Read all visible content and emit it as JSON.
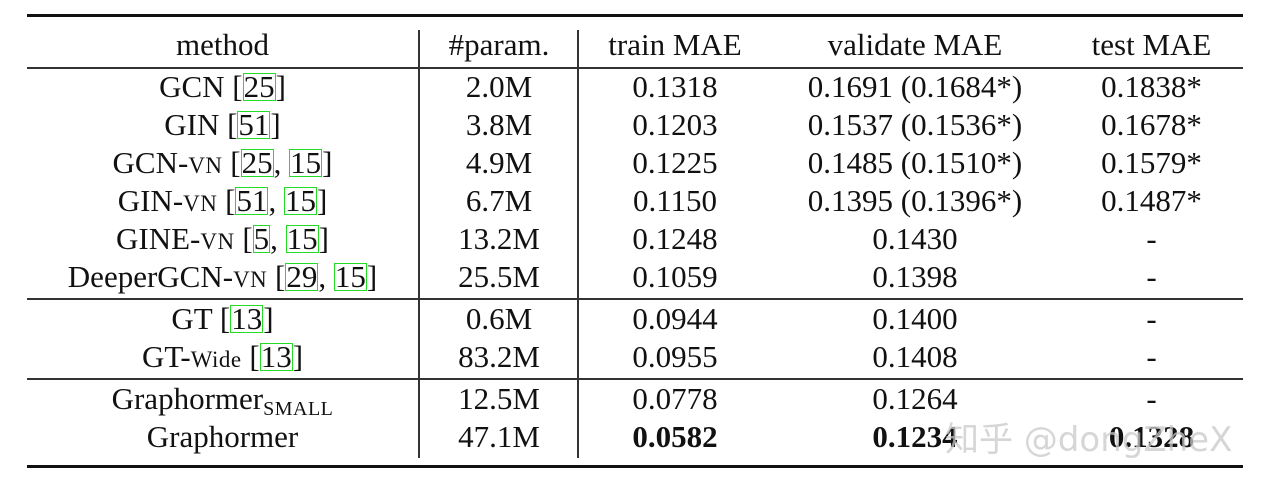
{
  "table": {
    "headers": [
      "method",
      "#param.",
      "train MAE",
      "validate MAE",
      "test MAE"
    ],
    "groups": [
      {
        "rows": [
          {
            "method": "GCN",
            "suffix": "",
            "cites": [
              "25"
            ],
            "params": "2.0M",
            "train": "0.1318",
            "validate": "0.1691 (0.1684*)",
            "test": "0.1838*"
          },
          {
            "method": "GIN",
            "suffix": "",
            "cites": [
              "51"
            ],
            "params": "3.8M",
            "train": "0.1203",
            "validate": "0.1537 (0.1536*)",
            "test": "0.1678*"
          },
          {
            "method": "GCN-",
            "suffix": "VN",
            "cites": [
              "25",
              "15"
            ],
            "params": "4.9M",
            "train": "0.1225",
            "validate": "0.1485 (0.1510*)",
            "test": "0.1579*"
          },
          {
            "method": "GIN-",
            "suffix": "VN",
            "cites": [
              "51",
              "15"
            ],
            "params": "6.7M",
            "train": "0.1150",
            "validate": "0.1395 (0.1396*)",
            "test": "0.1487*"
          },
          {
            "method": "GINE-",
            "suffix": "VN",
            "cites": [
              "5",
              "15"
            ],
            "params": "13.2M",
            "train": "0.1248",
            "validate": "0.1430",
            "test": "-"
          },
          {
            "method": "DeeperGCN-",
            "suffix": "VN",
            "cites": [
              "29",
              "15"
            ],
            "params": "25.5M",
            "train": "0.1059",
            "validate": "0.1398",
            "test": "-"
          }
        ]
      },
      {
        "rows": [
          {
            "method": "GT",
            "suffix": "",
            "cites": [
              "13"
            ],
            "params": "0.6M",
            "train": "0.0944",
            "validate": "0.1400",
            "test": "-"
          },
          {
            "method": "GT-",
            "suffix": "Wide",
            "cites": [
              "13"
            ],
            "params": "83.2M",
            "train": "0.0955",
            "validate": "0.1408",
            "test": "-"
          }
        ]
      },
      {
        "rows": [
          {
            "method": "Graphormer",
            "subscript": "SMALL",
            "cites": [],
            "params": "12.5M",
            "train": "0.0778",
            "validate": "0.1264",
            "test": "-"
          },
          {
            "method": "Graphormer",
            "subscript": "",
            "cites": [],
            "params": "47.1M",
            "train": "0.0582",
            "validate": "0.1234",
            "test": "0.1328",
            "bold": true
          }
        ]
      }
    ]
  },
  "watermark": "知乎 @dongZheX",
  "colors": {
    "cite_box": "#22dd22",
    "rule": "#111111",
    "watermark": "#c8c8c8"
  }
}
